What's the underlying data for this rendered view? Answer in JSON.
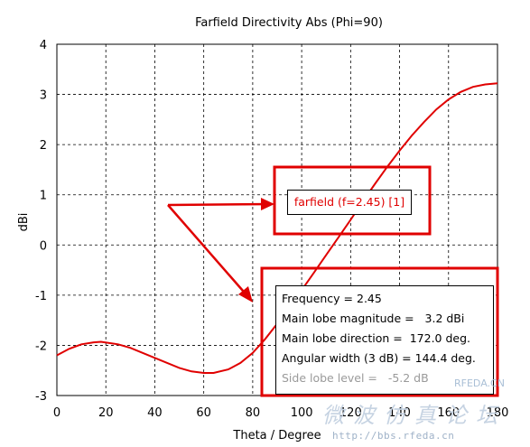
{
  "chart_data": {
    "type": "line",
    "title": "Farfield Directivity Abs (Phi=90)",
    "xlabel": "Theta / Degree",
    "ylabel": "dBi",
    "xlim": [
      0,
      180
    ],
    "ylim": [
      -3,
      4
    ],
    "xticks": [
      0,
      20,
      40,
      60,
      80,
      100,
      120,
      140,
      160,
      180
    ],
    "yticks": [
      -3,
      -2,
      -1,
      0,
      1,
      2,
      3,
      4
    ],
    "grid": true,
    "series": [
      {
        "name": "farfield (f=2.45) [1]",
        "color": "#e00000",
        "x": [
          0,
          5,
          10,
          15,
          18,
          25,
          30,
          40,
          50,
          55,
          60,
          64,
          70,
          75,
          80,
          85,
          90,
          95,
          100,
          105,
          110,
          115,
          120,
          125,
          130,
          135,
          140,
          145,
          150,
          155,
          160,
          165,
          170,
          175,
          180
        ],
        "y": [
          -2.2,
          -2.07,
          -1.98,
          -1.94,
          -1.93,
          -1.98,
          -2.05,
          -2.25,
          -2.45,
          -2.52,
          -2.55,
          -2.55,
          -2.48,
          -2.35,
          -2.15,
          -1.88,
          -1.57,
          -1.25,
          -0.9,
          -0.55,
          -0.2,
          0.15,
          0.5,
          0.87,
          1.22,
          1.56,
          1.88,
          2.18,
          2.45,
          2.7,
          2.9,
          3.05,
          3.15,
          3.2,
          3.22
        ]
      }
    ],
    "legend": {
      "label": "farfield (f=2.45) [1]",
      "placement": "center"
    },
    "info": [
      "Frequency = 2.45",
      "Main lobe magnitude =   3.2 dBi",
      "Main lobe direction =  172.0 deg.",
      "Angular width (3 dB) = 144.4 deg.",
      "Side lobe level =   -5.2 dB"
    ],
    "annotation_color": "#e00000"
  },
  "watermark": {
    "cn": "微波仿真论坛",
    "url": "http://bbs.rfeda.cn",
    "site": "RFEDA.CN"
  }
}
